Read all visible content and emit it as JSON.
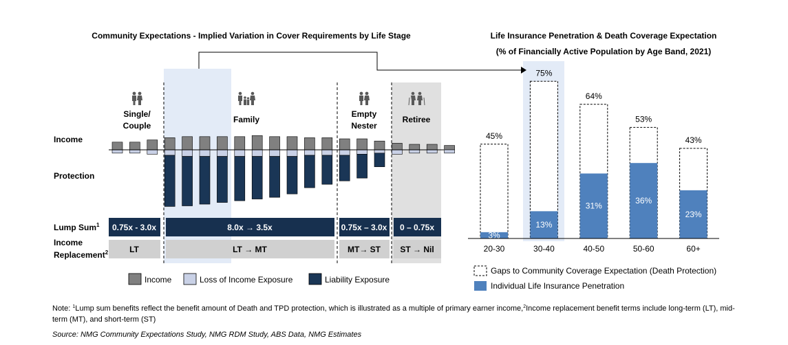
{
  "left_chart": {
    "title": "Community Expectations - Implied Variation in Cover Requirements by Life Stage",
    "row_labels": {
      "income": "Income",
      "protection": "Protection",
      "lump_sum": "Lump Sum",
      "lump_sum_sup": "1",
      "income_replacement_line1": "Income",
      "income_replacement_line2": "Replacement",
      "income_replacement_sup": "2"
    },
    "stages": [
      {
        "label_lines": [
          "Single/",
          "Couple"
        ],
        "icon": "couple-icon",
        "lump_sum": "0.75x - 3.0x",
        "income_replacement": "LT"
      },
      {
        "label_lines": [
          "Family"
        ],
        "icon": "family-icon",
        "lump_sum": "8.0x → 3.5x",
        "income_replacement": "LT → MT"
      },
      {
        "label_lines": [
          "Empty",
          "Nester"
        ],
        "icon": "couple-icon",
        "lump_sum": "0.75x – 3.0x",
        "income_replacement": "MT→ ST"
      },
      {
        "label_lines": [
          "Retiree"
        ],
        "icon": "elderly-couple-icon",
        "lump_sum": "0 – 0.75x",
        "income_replacement": "ST → Nil"
      }
    ],
    "bars": {
      "income": [
        0.7,
        0.7,
        0.9,
        1.1,
        1.2,
        1.2,
        1.2,
        1.2,
        1.3,
        1.2,
        1.2,
        1.1,
        1.1,
        1.0,
        1.0,
        0.8,
        0.6,
        0.5,
        0.5,
        0.4
      ],
      "loss_of_income": [
        0.3,
        0.3,
        0.4,
        0.5,
        0.6,
        0.6,
        0.6,
        0.6,
        0.6,
        0.6,
        0.6,
        0.5,
        0.5,
        0.5,
        0.4,
        0.3,
        0.4,
        0.3,
        0.3,
        0.3
      ],
      "liability": [
        0,
        0,
        0,
        3.0,
        2.9,
        2.8,
        2.7,
        2.6,
        2.5,
        2.4,
        2.2,
        1.9,
        1.7,
        1.5,
        1.4,
        0.8,
        0,
        0,
        0,
        0
      ]
    },
    "legend": [
      "Income",
      "Loss of Income Exposure",
      "Liability Exposure"
    ],
    "colors": {
      "income": "#808080",
      "loss_of_income": "#c9d1e6",
      "liability": "#1a3656",
      "lump_bar": "#17304f",
      "income_repl_bar": "#d0d0d0",
      "highlight": "#e3ebf7",
      "retiree_bg": "#e0e0e0"
    }
  },
  "chart_data": {
    "type": "bar",
    "title": "Life Insurance Penetration & Death Coverage Expectation",
    "subtitle": "(% of Financially Active Population by Age Band, 2021)",
    "categories": [
      "20-30",
      "30-40",
      "40-50",
      "50-60",
      "60+"
    ],
    "series": [
      {
        "name": "Individual Life Insurance Penetration",
        "values": [
          3,
          13,
          31,
          36,
          23
        ]
      },
      {
        "name": "Gaps to Community Coverage Expectation (Death Protection)",
        "values": [
          42,
          62,
          33,
          17,
          20
        ]
      }
    ],
    "totals": [
      45,
      75,
      64,
      53,
      43
    ],
    "bar_labels": [
      "3%",
      "13%",
      "31%",
      "36%",
      "23%"
    ],
    "total_labels": [
      "45%",
      "75%",
      "64%",
      "53%",
      "43%"
    ],
    "highlight_category": "30-40",
    "ylim": [
      0,
      80
    ],
    "colors": {
      "penetration": "#4f81bd",
      "gap_border": "#000000",
      "highlight": "#e3ebf7"
    },
    "legend_position": "bottom"
  },
  "footer": {
    "note_prefix": "Note: ",
    "note_sup1": "1",
    "note_text1": "Lump sum benefits reflect the benefit amount of Death and TPD protection, which is illustrated as a multiple of primary earner income,",
    "note_sup2": "2",
    "note_text2": "Income replacement benefit terms include long-term (LT), mid-term (MT), and short-term (ST)",
    "source": "Source: NMG Community Expectations Study, NMG RDM Study, ABS Data, NMG Estimates"
  }
}
